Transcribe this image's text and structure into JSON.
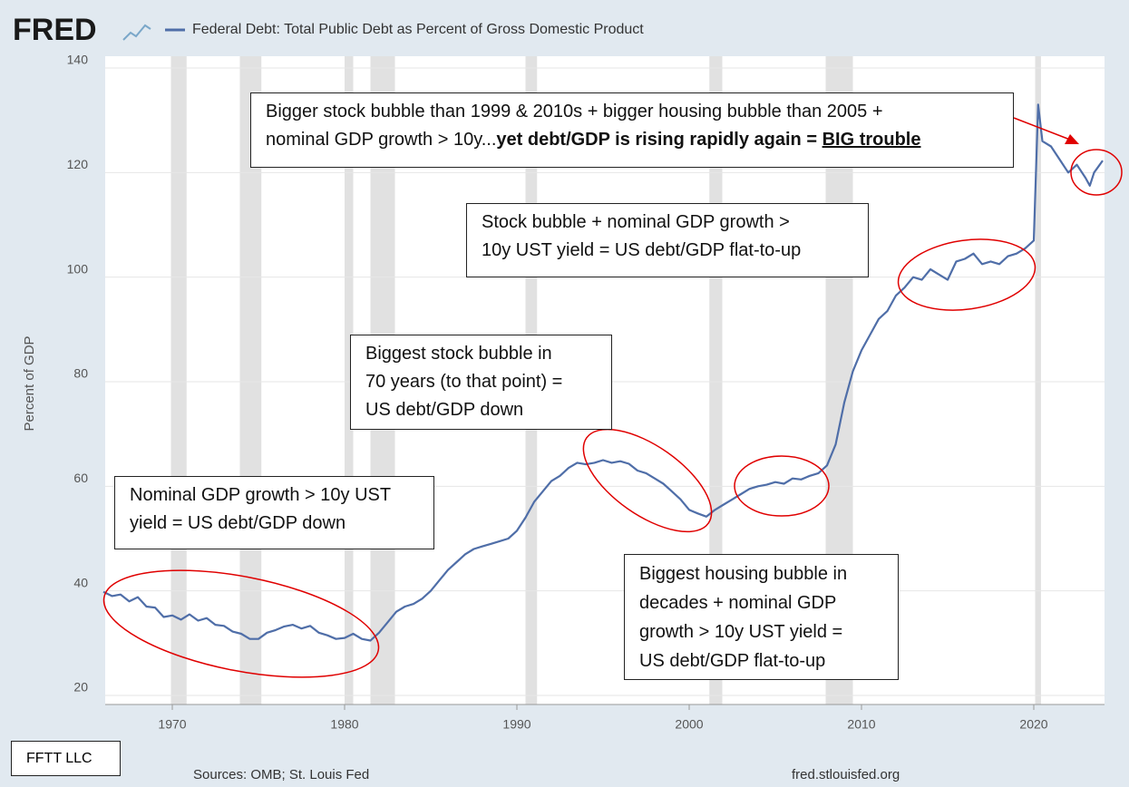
{
  "brand": "FRED",
  "chart_data": {
    "type": "line",
    "title": "Federal Debt: Total Public Debt as Percent of Gross Domestic Product",
    "y_label": "Percent of GDP",
    "source": "Sources: OMB; St. Louis Fed",
    "url": "fred.stlouisfed.org",
    "credit": "FFTT LLC",
    "grid": true,
    "xlim": [
      1966,
      2024
    ],
    "xticks": [
      1970,
      1980,
      1990,
      2000,
      2010,
      2020
    ],
    "ylim": [
      20,
      140
    ],
    "yticks": [
      20,
      40,
      60,
      80,
      100,
      120,
      140
    ],
    "recessions": [
      [
        1969.92,
        1970.83
      ],
      [
        1973.92,
        1975.17
      ],
      [
        1980.0,
        1980.5
      ],
      [
        1981.5,
        1982.92
      ],
      [
        1990.5,
        1991.17
      ],
      [
        2001.17,
        2001.92
      ],
      [
        2007.92,
        2009.5
      ],
      [
        2020.08,
        2020.42
      ]
    ],
    "series": [
      {
        "name": "Federal Debt: Total Public Debt as Percent of Gross Domestic Product",
        "color": "#4f6ea8",
        "x": [
          1966,
          1966.5,
          1967,
          1967.5,
          1968,
          1968.5,
          1969,
          1969.5,
          1970,
          1970.5,
          1971,
          1971.5,
          1972,
          1972.5,
          1973,
          1973.5,
          1974,
          1974.5,
          1975,
          1975.5,
          1976,
          1976.5,
          1977,
          1977.5,
          1978,
          1978.5,
          1979,
          1979.5,
          1980,
          1980.5,
          1981,
          1981.5,
          1982,
          1982.5,
          1983,
          1983.5,
          1984,
          1984.5,
          1985,
          1985.5,
          1986,
          1986.5,
          1987,
          1987.5,
          1988,
          1988.5,
          1989,
          1989.5,
          1990,
          1990.5,
          1991,
          1991.5,
          1992,
          1992.5,
          1993,
          1993.5,
          1994,
          1994.5,
          1995,
          1995.5,
          1996,
          1996.5,
          1997,
          1997.5,
          1998,
          1998.5,
          1999,
          1999.5,
          2000,
          2000.5,
          2001,
          2001.5,
          2002,
          2002.5,
          2003,
          2003.5,
          2004,
          2004.5,
          2005,
          2005.5,
          2006,
          2006.5,
          2007,
          2007.5,
          2008,
          2008.5,
          2009,
          2009.5,
          2010,
          2010.5,
          2011,
          2011.5,
          2012,
          2012.5,
          2013,
          2013.5,
          2014,
          2014.5,
          2015,
          2015.5,
          2016,
          2016.5,
          2017,
          2017.5,
          2018,
          2018.5,
          2019,
          2019.5,
          2020,
          2020.25,
          2020.5,
          2021,
          2021.5,
          2022,
          2022.5,
          2023,
          2023.25,
          2023.5,
          2024
        ],
        "values": [
          39.8,
          39.0,
          39.3,
          38.0,
          38.8,
          37.0,
          36.8,
          35.0,
          35.3,
          34.5,
          35.5,
          34.3,
          34.8,
          33.5,
          33.3,
          32.2,
          31.8,
          30.8,
          30.8,
          32.0,
          32.5,
          33.2,
          33.5,
          32.8,
          33.3,
          32.0,
          31.5,
          30.8,
          31.0,
          31.8,
          30.8,
          30.5,
          32.0,
          34.0,
          36.0,
          37.0,
          37.5,
          38.5,
          40.0,
          42.0,
          44.0,
          45.5,
          47.0,
          48.0,
          48.5,
          49.0,
          49.5,
          50.0,
          51.5,
          54.0,
          57.0,
          59.0,
          61.0,
          62.0,
          63.5,
          64.5,
          64.2,
          64.5,
          65.0,
          64.5,
          64.8,
          64.3,
          63.0,
          62.5,
          61.5,
          60.5,
          59.0,
          57.5,
          55.5,
          54.8,
          54.2,
          55.5,
          56.5,
          57.5,
          58.5,
          59.5,
          60.0,
          60.3,
          60.8,
          60.5,
          61.5,
          61.3,
          62.0,
          62.5,
          64.0,
          68.0,
          76.0,
          82.0,
          86.0,
          89.0,
          92.0,
          93.5,
          96.5,
          98.0,
          100.0,
          99.5,
          101.5,
          100.5,
          99.5,
          103.0,
          103.5,
          104.5,
          102.5,
          103.0,
          102.5,
          104.0,
          104.5,
          105.5,
          107.0,
          133.0,
          126.0,
          125.0,
          122.5,
          120.0,
          121.5,
          119.0,
          117.5,
          120.0,
          122.3
        ]
      }
    ]
  },
  "annotations": [
    {
      "line1": "Bigger stock bubble than 1999 & 2010s + bigger housing bubble than 2005 +",
      "line2_plain": "nominal GDP growth > 10y...",
      "line2_bold": "yet debt/GDP is rising rapidly again = ",
      "line2_underlined": "BIG trouble"
    },
    {
      "lines": [
        "Stock bubble + nominal GDP growth >",
        "10y UST yield = US debt/GDP flat-to-up"
      ]
    },
    {
      "lines": [
        "Biggest stock bubble in",
        "70 years (to that point) =",
        "US debt/GDP down"
      ]
    },
    {
      "lines": [
        "Nominal GDP growth > 10y UST",
        "yield = US debt/GDP down"
      ]
    },
    {
      "lines": [
        "Biggest housing bubble in",
        "decades + nominal GDP",
        "growth > 10y UST yield =",
        "US debt/GDP flat-to-up"
      ]
    }
  ]
}
